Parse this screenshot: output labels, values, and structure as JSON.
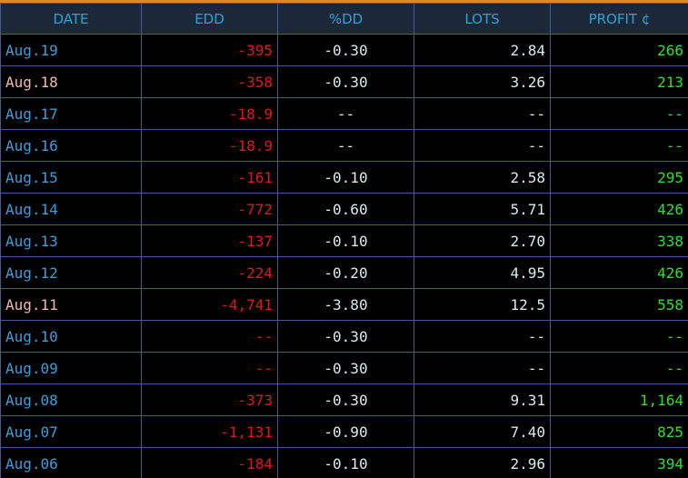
{
  "table": {
    "headers": [
      "DATE",
      "EDD",
      "%DD",
      "LOTS",
      "PROFIT ¢"
    ],
    "align": [
      "left",
      "right",
      "center",
      "right",
      "right"
    ],
    "column_colors": [
      "#3a9ee0",
      "#e8141c",
      "#d8ecec",
      "#d8ecec",
      "#2ee02e"
    ],
    "highlighted_rows": [
      1,
      8
    ],
    "highlight_color": "#f2b8b0",
    "rows": [
      [
        "Aug.19",
        "-395",
        "-0.30",
        "2.84",
        "266"
      ],
      [
        "Aug.18",
        "-358",
        "-0.30",
        "3.26",
        "213"
      ],
      [
        "Aug.17",
        "-18.9",
        "--",
        "--",
        "--"
      ],
      [
        "Aug.16",
        "-18.9",
        "--",
        "--",
        "--"
      ],
      [
        "Aug.15",
        "-161",
        "-0.10",
        "2.58",
        "295"
      ],
      [
        "Aug.14",
        "-772",
        "-0.60",
        "5.71",
        "426"
      ],
      [
        "Aug.13",
        "-137",
        "-0.10",
        "2.70",
        "338"
      ],
      [
        "Aug.12",
        "-224",
        "-0.20",
        "4.95",
        "426"
      ],
      [
        "Aug.11",
        "-4,741",
        "-3.80",
        "12.5",
        "558"
      ],
      [
        "Aug.10",
        "--",
        "-0.30",
        "--",
        "--"
      ],
      [
        "Aug.09",
        "--",
        "-0.30",
        "--",
        "--"
      ],
      [
        "Aug.08",
        "-373",
        "-0.30",
        "9.31",
        "1,164"
      ],
      [
        "Aug.07",
        "-1,131",
        "-0.90",
        "7.40",
        "825"
      ],
      [
        "Aug.06",
        "-184",
        "-0.10",
        "2.96",
        "394"
      ]
    ]
  }
}
